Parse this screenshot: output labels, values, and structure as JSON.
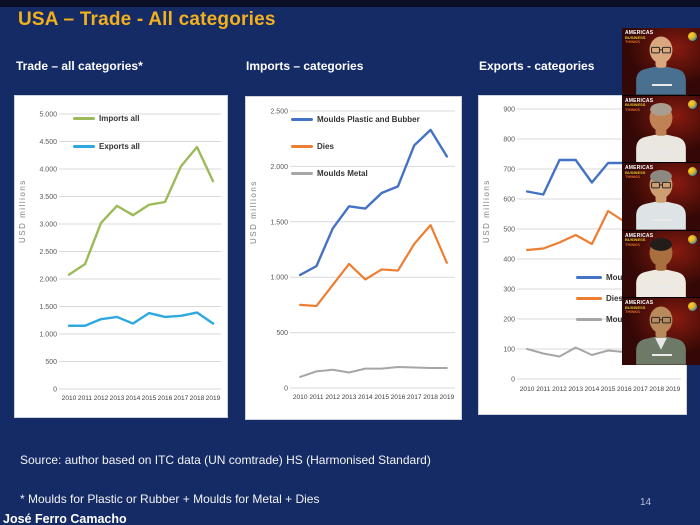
{
  "slide": {
    "title": "USA – Trade - All categories",
    "source_note": "Source: author based on ITC data (UN comtrade) HS (Harmonised Standard)",
    "footnote": "* Moulds for Plastic or Rubber + Moulds for Metal + Dies",
    "author": "José Ferro Camacho",
    "page_number": "14",
    "colors": {
      "background": "#152b66",
      "title_gold": "#F2B01E",
      "panel": "#ffffff"
    }
  },
  "chart_data": [
    {
      "type": "line",
      "section_title": "Trade – all categories*",
      "ylabel": "USD millions",
      "x": [
        "2010",
        "2011",
        "2012",
        "2013",
        "2014",
        "2015",
        "2016",
        "2017",
        "2018",
        "2019"
      ],
      "ylim": [
        0,
        5000
      ],
      "ytick_values": [
        0,
        500,
        1000,
        1500,
        2000,
        2500,
        3000,
        3500,
        4000,
        4500,
        5000
      ],
      "ytick_labels": [
        "0",
        "500",
        "1.000",
        "1.500",
        "2.000",
        "2.500",
        "3.000",
        "3.500",
        "4.000",
        "4.500",
        "5.000"
      ],
      "grid": true,
      "legend_position": "top-left",
      "series": [
        {
          "name": "Imports all",
          "color": "#9BBB59",
          "values": [
            2080,
            2270,
            3020,
            3330,
            3160,
            3350,
            3400,
            4050,
            4400,
            3780
          ]
        },
        {
          "name": "Exports all",
          "color": "#2EA8DF",
          "values": [
            1150,
            1150,
            1270,
            1310,
            1190,
            1380,
            1310,
            1330,
            1390,
            1190
          ]
        }
      ]
    },
    {
      "type": "line",
      "section_title": "Imports – categories",
      "ylabel": "USD millions",
      "x": [
        "2010",
        "2011",
        "2012",
        "2013",
        "2014",
        "2015",
        "2016",
        "2017",
        "2018",
        "2019"
      ],
      "ylim": [
        0,
        2500
      ],
      "ytick_values": [
        0,
        500,
        1000,
        1500,
        2000,
        2500
      ],
      "ytick_labels": [
        "0",
        "500",
        "1.000",
        "1.500",
        "2.000",
        "2.500"
      ],
      "grid": true,
      "legend_position": "top-left",
      "series": [
        {
          "name": "Moulds Plastic and Bubber",
          "color": "#4472C4",
          "values": [
            1020,
            1100,
            1440,
            1640,
            1620,
            1760,
            1820,
            2190,
            2330,
            2090
          ]
        },
        {
          "name": "Dies",
          "color": "#ED7D31",
          "values": [
            750,
            740,
            930,
            1120,
            980,
            1070,
            1060,
            1300,
            1470,
            1130
          ]
        },
        {
          "name": "Moulds Metal",
          "color": "#A6A6A6",
          "values": [
            100,
            150,
            165,
            140,
            175,
            175,
            190,
            185,
            180,
            180
          ]
        }
      ]
    },
    {
      "type": "line",
      "section_title": "Exports - categories",
      "ylabel": "USD millions",
      "x": [
        "2010",
        "2011",
        "2012",
        "2013",
        "2014",
        "2015",
        "2016",
        "2017",
        "2018",
        "2019"
      ],
      "ylim": [
        0,
        900
      ],
      "ytick_values": [
        0,
        100,
        200,
        300,
        400,
        500,
        600,
        700,
        800,
        900
      ],
      "ytick_labels": [
        "0",
        "100",
        "200",
        "300",
        "400",
        "500",
        "600",
        "700",
        "800",
        "900"
      ],
      "grid": true,
      "legend_position": "middle-right (partly hidden by video strip)",
      "series": [
        {
          "name": "Moulds Plastic and Rubber",
          "color": "#4472C4",
          "values": [
            625,
            615,
            730,
            730,
            655,
            720,
            720,
            725,
            720,
            715
          ]
        },
        {
          "name": "Dies",
          "color": "#ED7D31",
          "values": [
            430,
            435,
            455,
            480,
            450,
            560,
            525,
            545,
            565,
            530
          ]
        },
        {
          "name": "Moulds Metal",
          "color": "#A6A6A6",
          "values": [
            100,
            85,
            75,
            105,
            80,
            95,
            90,
            70,
            95,
            85
          ]
        }
      ]
    }
  ],
  "video_strip": {
    "watermark": {
      "line1": "AMERICAS",
      "line2": "BUSINESS",
      "line3": "THINKS"
    },
    "participants": [
      {
        "name": "participant-1",
        "bald": true,
        "glasses": true,
        "skin": "#d9a87f",
        "hair": null,
        "shirt": "#49718f",
        "lapel": false
      },
      {
        "name": "participant-2",
        "bald": false,
        "glasses": false,
        "skin": "#c08255",
        "hair": "#a79e90",
        "shirt": "#e9e7e0",
        "lapel": false
      },
      {
        "name": "participant-3",
        "bald": false,
        "glasses": true,
        "skin": "#cf9d72",
        "hair": "#8d8880",
        "shirt": "#dee3e6",
        "lapel": false
      },
      {
        "name": "participant-4",
        "bald": false,
        "glasses": false,
        "skin": "#a96f3e",
        "hair": "#221d1a",
        "shirt": "#eeeae2",
        "lapel": false
      },
      {
        "name": "participant-5",
        "bald": true,
        "glasses": true,
        "skin": "#b98a5c",
        "hair": null,
        "shirt": "#6d7a68",
        "lapel": true
      }
    ]
  }
}
